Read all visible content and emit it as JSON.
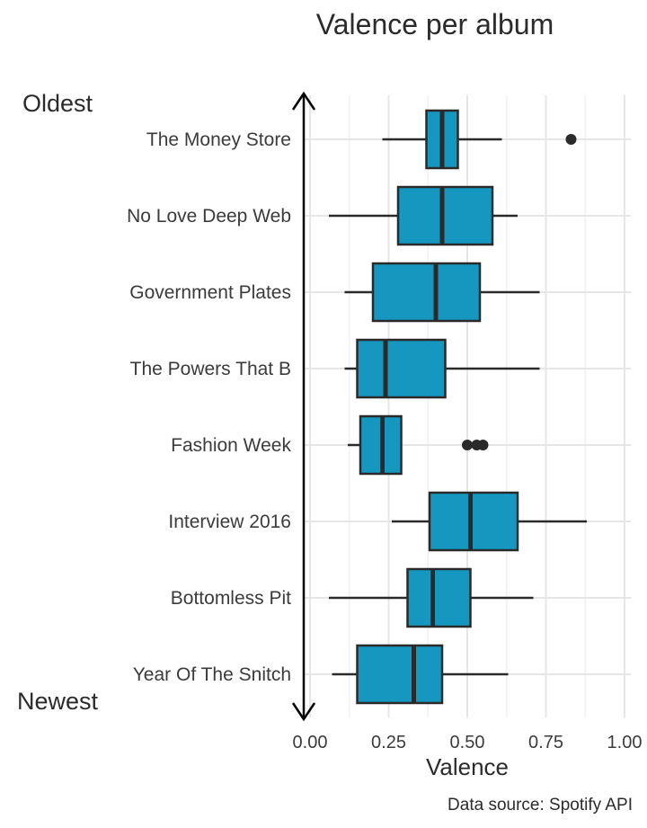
{
  "chart_data": {
    "type": "boxplot",
    "title": "Valence per album",
    "xlabel": "Valence",
    "ylabel": "",
    "xlim": [
      -0.02,
      1.02
    ],
    "x_ticks": [
      0.0,
      0.25,
      0.5,
      0.75,
      1.0
    ],
    "x_tick_labels": [
      "0.00",
      "0.25",
      "0.50",
      "0.75",
      "1.00"
    ],
    "grid": true,
    "box_color": "#1597bf",
    "annotations": {
      "top": "Oldest",
      "bottom": "Newest"
    },
    "caption": "Data source: Spotify API",
    "categories": [
      "The Money Store",
      "No Love Deep Web",
      "Government Plates",
      "The Powers That B",
      "Fashion Week",
      "Interview 2016",
      "Bottomless Pit",
      "Year Of The Snitch"
    ],
    "boxes": [
      {
        "label": "The Money Store",
        "min": 0.23,
        "q1": 0.37,
        "median": 0.42,
        "q3": 0.47,
        "max": 0.61,
        "outliers": [
          0.83
        ]
      },
      {
        "label": "No Love Deep Web",
        "min": 0.06,
        "q1": 0.28,
        "median": 0.42,
        "q3": 0.58,
        "max": 0.66,
        "outliers": []
      },
      {
        "label": "Government Plates",
        "min": 0.11,
        "q1": 0.2,
        "median": 0.4,
        "q3": 0.54,
        "max": 0.73,
        "outliers": []
      },
      {
        "label": "The Powers That B",
        "min": 0.11,
        "q1": 0.15,
        "median": 0.24,
        "q3": 0.43,
        "max": 0.73,
        "outliers": []
      },
      {
        "label": "Fashion Week",
        "min": 0.12,
        "q1": 0.16,
        "median": 0.23,
        "q3": 0.29,
        "max": 0.29,
        "outliers": [
          0.5,
          0.53,
          0.55
        ]
      },
      {
        "label": "Interview 2016",
        "min": 0.26,
        "q1": 0.38,
        "median": 0.51,
        "q3": 0.66,
        "max": 0.88,
        "outliers": []
      },
      {
        "label": "Bottomless Pit",
        "min": 0.06,
        "q1": 0.31,
        "median": 0.39,
        "q3": 0.51,
        "max": 0.71,
        "outliers": []
      },
      {
        "label": "Year Of The Snitch",
        "min": 0.07,
        "q1": 0.15,
        "median": 0.33,
        "q3": 0.42,
        "max": 0.63,
        "outliers": []
      }
    ]
  }
}
